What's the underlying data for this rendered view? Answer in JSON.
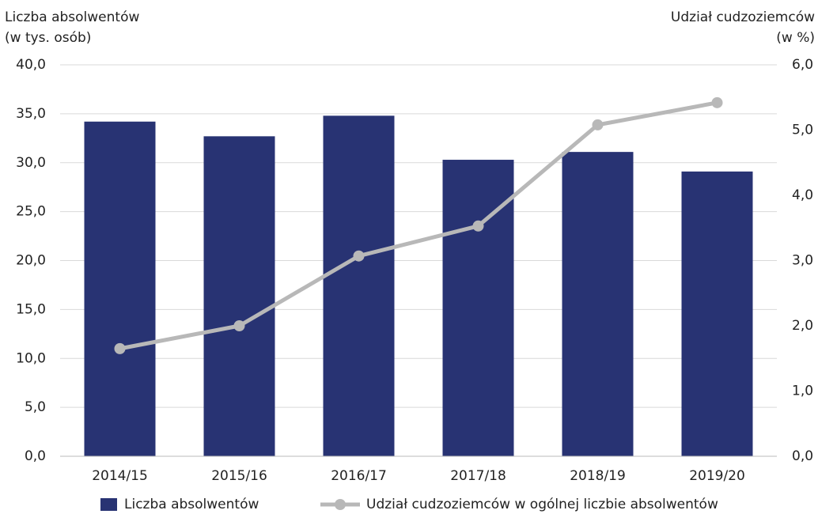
{
  "chart_data": {
    "type": "combo",
    "y_label": [
      "Liczba absolwentów",
      "(w tys. osób)"
    ],
    "y2_label": [
      "Udział cudzoziemców",
      "(w %)"
    ],
    "categories": [
      "2014/15",
      "2015/16",
      "2016/17",
      "2017/18",
      "2018/19",
      "2019/20"
    ],
    "series": [
      {
        "name": "Liczba absolwentów",
        "type": "bar",
        "color": "#283373",
        "values": [
          34.2,
          32.7,
          34.8,
          30.3,
          31.1,
          29.1
        ]
      },
      {
        "name": "Udział cudzoziemców w ogólnej liczbie absolwentów",
        "type": "line",
        "axis": "y2",
        "color": "#b8b8b8",
        "values": [
          1.65,
          2.0,
          3.07,
          3.53,
          5.08,
          5.42
        ]
      }
    ],
    "ylim": [
      0,
      40
    ],
    "yticks": [
      {
        "value": 0,
        "label": "0,0"
      },
      {
        "value": 5,
        "label": "5,0"
      },
      {
        "value": 10,
        "label": "10,0"
      },
      {
        "value": 15,
        "label": "15,0"
      },
      {
        "value": 20,
        "label": "20,0"
      },
      {
        "value": 25,
        "label": "25,0"
      },
      {
        "value": 30,
        "label": "30,0"
      },
      {
        "value": 35,
        "label": "35,0"
      },
      {
        "value": 40,
        "label": "40,0"
      }
    ],
    "y2lim": [
      0,
      6
    ],
    "y2ticks": [
      {
        "value": 0,
        "label": "0,0"
      },
      {
        "value": 1,
        "label": "1,0"
      },
      {
        "value": 2,
        "label": "2,0"
      },
      {
        "value": 3,
        "label": "3,0"
      },
      {
        "value": 4,
        "label": "4,0"
      },
      {
        "value": 5,
        "label": "5,0"
      },
      {
        "value": 6,
        "label": "6,0"
      }
    ],
    "grid": true,
    "legend": "bottom"
  }
}
